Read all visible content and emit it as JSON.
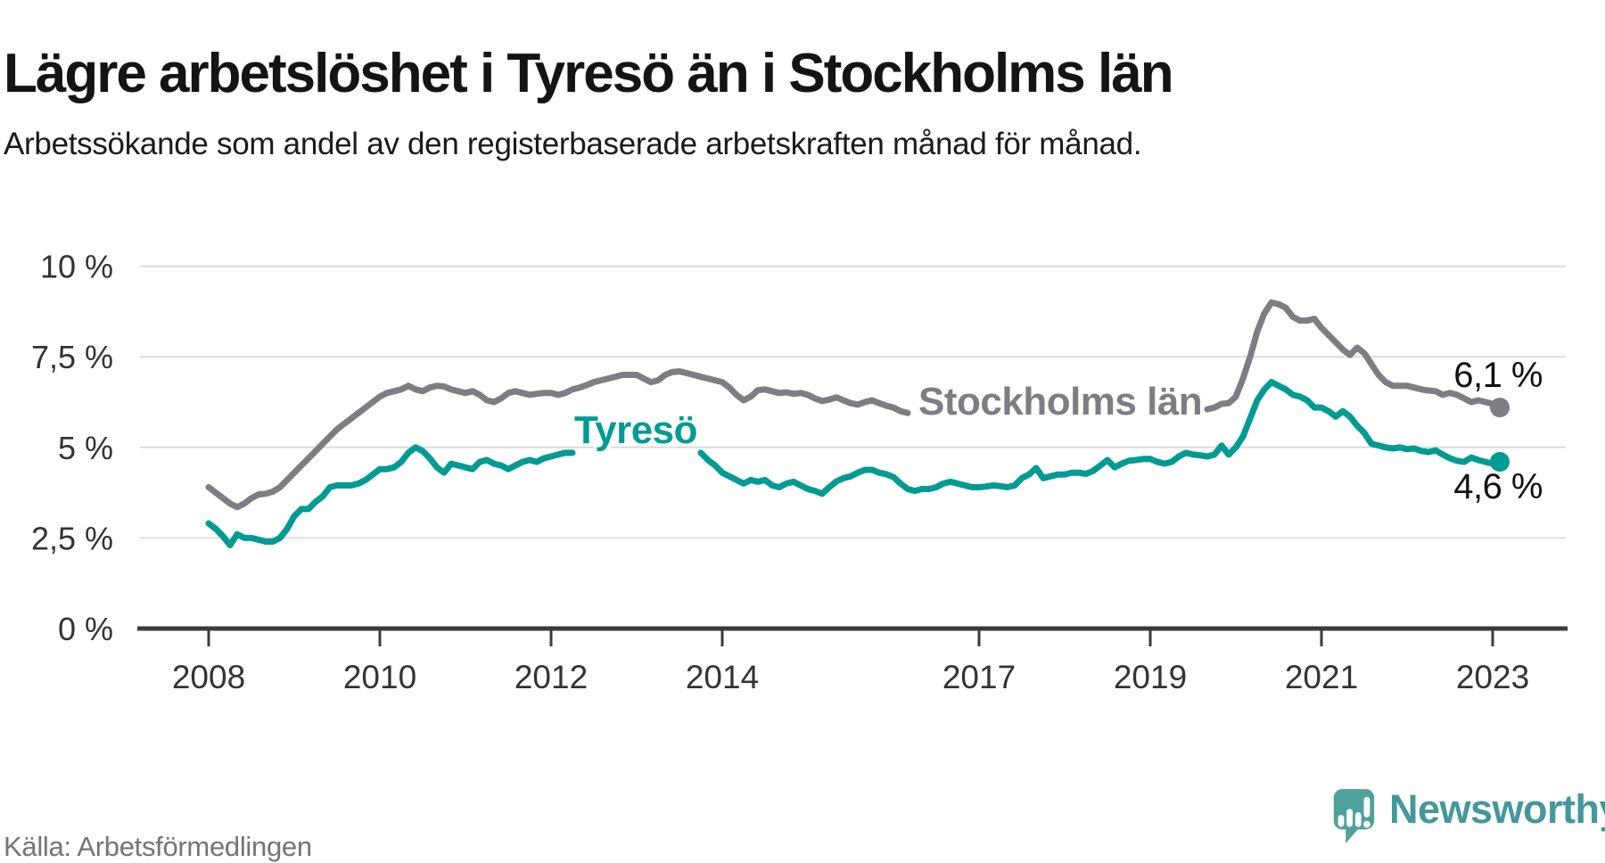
{
  "header": {
    "title": "Lägre arbetslöshet i Tyresö än i Stockholms län",
    "subtitle": "Arbetssökande som andel av den registerbaserade arbetskraften månad för månad."
  },
  "footer": {
    "source": "Källa: Arbetsförmedlingen"
  },
  "branding": {
    "name": "Newsworthy",
    "icon": "newsworthy-speech-bubble-bar-chart-icon",
    "text_color": "#43989b",
    "icon_color": "#4fa29c"
  },
  "colors": {
    "stockholm_line": "#7e7d84",
    "tyreso_line": "#009b92",
    "grid": "#dcdcdc",
    "axis": "#3b3b3b",
    "tick_text": "#333333",
    "end_label_text": "#111111"
  },
  "chart_data": {
    "type": "line",
    "title": "Lägre arbetslöshet i Tyresö än i Stockholms län",
    "subtitle": "Arbetssökande som andel av den registerbaserade arbetskraften månad för månad.",
    "grid": true,
    "x_axis": {
      "unit": "year",
      "ticks": [
        2008,
        2010,
        2012,
        2014,
        2017,
        2019,
        2021,
        2023
      ],
      "range_years": [
        2007.7,
        2023.9
      ]
    },
    "y_axis": {
      "unit": "%",
      "tick_labels": [
        "0 %",
        "2,5 %",
        "5 %",
        "7,5 %",
        "10 %"
      ],
      "tick_values": [
        0,
        2.5,
        5,
        7.5,
        10
      ],
      "ylim": [
        0,
        10
      ]
    },
    "series": [
      {
        "name": "Stockholms län",
        "color": "#7e7d84",
        "inline_label": "Stockholms län",
        "end_label": "6,1 %",
        "end_value": 6.1,
        "label_gap_years": [
          2016.3,
          2019.65
        ],
        "segments": [
          {
            "start_year": 2008.0,
            "step_months": 1,
            "values": [
              3.9,
              3.75,
              3.6,
              3.45,
              3.35,
              3.45,
              3.6,
              3.7,
              3.72,
              3.78,
              3.9,
              4.1,
              4.3,
              4.5,
              4.7,
              4.9,
              5.1,
              5.3,
              5.5,
              5.65,
              5.8,
              5.95,
              6.1,
              6.25,
              6.4,
              6.5,
              6.55,
              6.6,
              6.7,
              6.6,
              6.55,
              6.65,
              6.7,
              6.68,
              6.6,
              6.55,
              6.5,
              6.55,
              6.45,
              6.3,
              6.25,
              6.35,
              6.5,
              6.55,
              6.5,
              6.45,
              6.48,
              6.5,
              6.5,
              6.45,
              6.5,
              6.6,
              6.65,
              6.72,
              6.8,
              6.85,
              6.9,
              6.95,
              7.0,
              7.0,
              7.0,
              6.9,
              6.8,
              6.85,
              7.0,
              7.08,
              7.1,
              7.05,
              7.0,
              6.95,
              6.9,
              6.85,
              6.8,
              6.65,
              6.45,
              6.3,
              6.4,
              6.58,
              6.6,
              6.55,
              6.5,
              6.52,
              6.48,
              6.5,
              6.45,
              6.35,
              6.28,
              6.32,
              6.38,
              6.3,
              6.22,
              6.18,
              6.25,
              6.3,
              6.22,
              6.15,
              6.1,
              6.0,
              5.95
            ]
          },
          {
            "start_year": 2019.6667,
            "step_months": 1,
            "values": [
              6.05,
              6.1,
              6.2,
              6.22,
              6.4,
              6.9,
              7.5,
              8.2,
              8.7,
              9.0,
              8.95,
              8.85,
              8.6,
              8.5,
              8.5,
              8.55,
              8.3,
              8.1,
              7.9,
              7.7,
              7.55,
              7.75,
              7.6,
              7.3,
              7.0,
              6.8,
              6.7,
              6.7,
              6.7,
              6.65,
              6.6,
              6.57,
              6.55,
              6.45,
              6.5,
              6.45,
              6.35,
              6.25,
              6.3,
              6.25,
              6.2,
              6.1
            ]
          }
        ]
      },
      {
        "name": "Tyresö",
        "color": "#009b92",
        "inline_label": "Tyresö",
        "end_label": "4,6 %",
        "end_value": 4.6,
        "label_gap_years": [
          2012.3,
          2013.75
        ],
        "segments": [
          {
            "start_year": 2008.0,
            "step_months": 1,
            "values": [
              2.9,
              2.75,
              2.55,
              2.3,
              2.6,
              2.5,
              2.5,
              2.45,
              2.4,
              2.4,
              2.5,
              2.75,
              3.1,
              3.3,
              3.3,
              3.5,
              3.65,
              3.9,
              3.95,
              3.95,
              3.95,
              4.0,
              4.1,
              4.25,
              4.4,
              4.4,
              4.45,
              4.6,
              4.85,
              5.0,
              4.9,
              4.7,
              4.45,
              4.3,
              4.55,
              4.5,
              4.45,
              4.4,
              4.6,
              4.65,
              4.55,
              4.5,
              4.4,
              4.5,
              4.6,
              4.65,
              4.6,
              4.7,
              4.75,
              4.8,
              4.85,
              4.85
            ]
          },
          {
            "start_year": 2013.75,
            "step_months": 1,
            "values": [
              4.85,
              4.65,
              4.5,
              4.3,
              4.2,
              4.1,
              4.0,
              4.1,
              4.05,
              4.1,
              3.95,
              3.9,
              4.0,
              4.05,
              3.95,
              3.85,
              3.8,
              3.72,
              3.9,
              4.06,
              4.15,
              4.2,
              4.3,
              4.38,
              4.38,
              4.3,
              4.26,
              4.18,
              4.0,
              3.85,
              3.8,
              3.85,
              3.85,
              3.9,
              4.0,
              4.05,
              4.0,
              3.95,
              3.9,
              3.9,
              3.92,
              3.95,
              3.93,
              3.9,
              3.95,
              4.15,
              4.25,
              4.43,
              4.15,
              4.2,
              4.25,
              4.25,
              4.3,
              4.3,
              4.27,
              4.35,
              4.5,
              4.65,
              4.45,
              4.55,
              4.63,
              4.65,
              4.68,
              4.68,
              4.6,
              4.55,
              4.6,
              4.75,
              4.85,
              4.8,
              4.78,
              4.75,
              4.8,
              5.05,
              4.8,
              5.0,
              5.3,
              5.8,
              6.3,
              6.6,
              6.8,
              6.7,
              6.6,
              6.45,
              6.4,
              6.3,
              6.1,
              6.1,
              6.0,
              5.85,
              6.0,
              5.85,
              5.6,
              5.4,
              5.1,
              5.05,
              5.0,
              4.97,
              5.0,
              4.95,
              4.97,
              4.9,
              4.87,
              4.92,
              4.8,
              4.7,
              4.63,
              4.6,
              4.72,
              4.65,
              4.6,
              4.55,
              4.6
            ]
          }
        ]
      }
    ]
  }
}
